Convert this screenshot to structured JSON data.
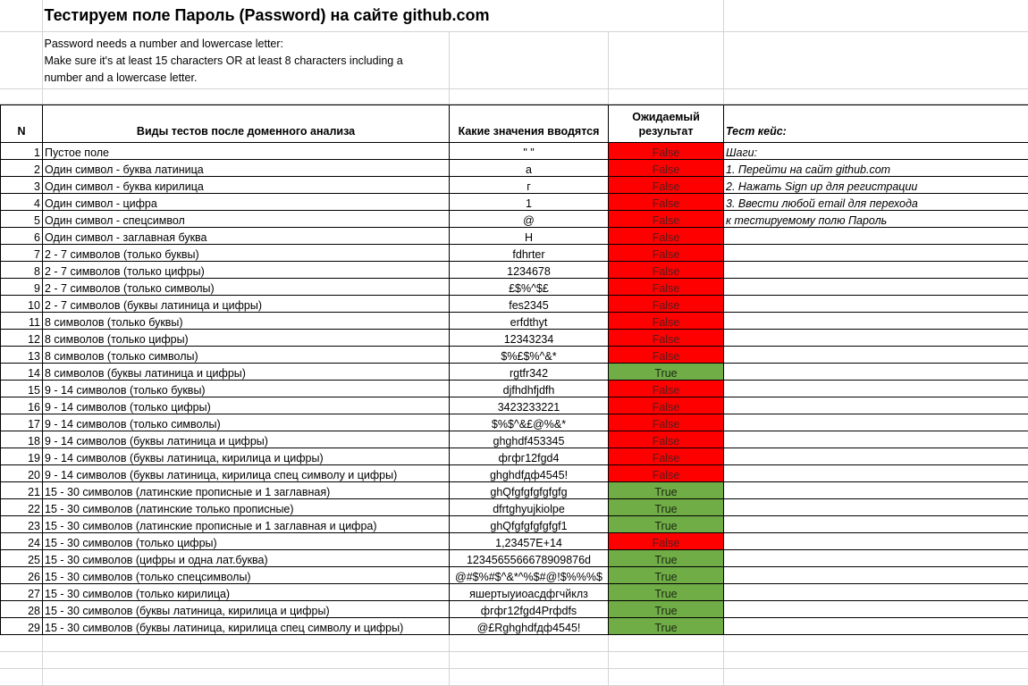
{
  "sheet": {
    "title": "Тестируем поле Пароль (Password) на сайте github.com",
    "description": [
      "Password needs a number and lowercase letter:",
      "Make sure it's at least 15 characters OR at least 8 characters including a",
      "number and a lowercase letter."
    ],
    "headers": {
      "n": "N",
      "type": "Виды тестов после доменного анализа",
      "value": "Какие значения вводятся",
      "expected": "Ожидаемый результат",
      "testcase": "Тест кейс:"
    },
    "steps": [
      "Шаги:",
      "1. Перейти на сайт github.com",
      "2. Нажать Sign up для регистрации",
      "3. Ввести любой email для перехода",
      "к тестируемому полю Пароль"
    ],
    "rows": [
      {
        "n": "1",
        "type": "Пустое поле",
        "value": "\" \"",
        "result": "False"
      },
      {
        "n": "2",
        "type": "Один символ - буква латиница",
        "value": "a",
        "result": "False"
      },
      {
        "n": "3",
        "type": "Один символ - буква кирилица",
        "value": "г",
        "result": "False"
      },
      {
        "n": "4",
        "type": "Один символ - цифра",
        "value": "1",
        "result": "False"
      },
      {
        "n": "5",
        "type": "Один символ - спецсимвол",
        "value": "@",
        "result": "False"
      },
      {
        "n": "6",
        "type": "Один символ - заглавная буква",
        "value": "H",
        "result": "False"
      },
      {
        "n": "7",
        "type": "2 - 7 символов (только буквы)",
        "value": "fdhrter",
        "result": "False"
      },
      {
        "n": "8",
        "type": "2 - 7 символов (только цифры)",
        "value": "1234678",
        "result": "False"
      },
      {
        "n": "9",
        "type": "2 - 7 символов (только символы)",
        "value": "£$%^$£",
        "result": "False"
      },
      {
        "n": "10",
        "type": "2 - 7 символов (буквы латиница и цифры)",
        "value": "fes2345",
        "result": "False"
      },
      {
        "n": "11",
        "type": "8 символов (только буквы)",
        "value": "erfdthyt",
        "result": "False"
      },
      {
        "n": "12",
        "type": "8 символов (только цифры)",
        "value": "12343234",
        "result": "False"
      },
      {
        "n": "13",
        "type": "8 символов (только символы)",
        "value": "$%£$%^&*",
        "result": "False"
      },
      {
        "n": "14",
        "type": "8 символов (буквы латиница и цифры)",
        "value": "rgtfr342",
        "result": "True"
      },
      {
        "n": "15",
        "type": "9 - 14 символов (только буквы)",
        "value": "djfhdhfjdfh",
        "result": "False"
      },
      {
        "n": "16",
        "type": "9 - 14 символов (только цифры)",
        "value": "3423233221",
        "result": "False"
      },
      {
        "n": "17",
        "type": "9 - 14 символов (только символы)",
        "value": "$%$^&£@%&*",
        "result": "False"
      },
      {
        "n": "18",
        "type": "9 - 14 символов (буквы латиница и цифры)",
        "value": "ghghdf453345",
        "result": "False"
      },
      {
        "n": "19",
        "type": "9 - 14 символов (буквы латиница, кирилица и цифры)",
        "value": "фгфг12fgd4",
        "result": "False"
      },
      {
        "n": "20",
        "type": "9 - 14 символов (буквы латиница, кирилица спец символу и цифры)",
        "value": "ghghdfдф4545!",
        "result": "False"
      },
      {
        "n": "21",
        "type": "15 - 30 символов (латинские прописные и 1 заглавная)",
        "value": "ghQfgfgfgfgfgfg",
        "result": "True"
      },
      {
        "n": "22",
        "type": "15 - 30 символов (латинские только прописные)",
        "value": "dfrtghyujkiolpe",
        "result": "True"
      },
      {
        "n": "23",
        "type": "15 - 30 символов (латинские прописные и 1 заглавная и цифра)",
        "value": "ghQfgfgfgfgfgf1",
        "result": "True"
      },
      {
        "n": "24",
        "type": "15 - 30 символов (только цифры)",
        "value": "1,23457E+14",
        "result": "False"
      },
      {
        "n": "25",
        "type": "15 - 30 символов (цифры и одна лат.буква)",
        "value": "1234565566678909876d",
        "result": "True"
      },
      {
        "n": "26",
        "type": "15 - 30 символов (только спецсимволы)",
        "value": "@#$%#$^&*^%$#@!$%%%$",
        "result": "True"
      },
      {
        "n": "27",
        "type": "15 - 30 символов (только кирилица)",
        "value": "яшертыуиоасдфгчйклз",
        "result": "True"
      },
      {
        "n": "28",
        "type": "15 - 30 символов (буквы латиница, кирилица и цифры)",
        "value": "фгфг12fgd4Prфdfs",
        "result": "True"
      },
      {
        "n": "29",
        "type": "15 - 30 символов (буквы латиница, кирилица спец символу и цифры)",
        "value": "@£Rghghdfдф4545!",
        "result": "True"
      }
    ],
    "colors": {
      "false_fill": "#ff0000",
      "true_fill": "#70ad47",
      "gridline": "#d4d4d4",
      "border": "#000000"
    }
  }
}
